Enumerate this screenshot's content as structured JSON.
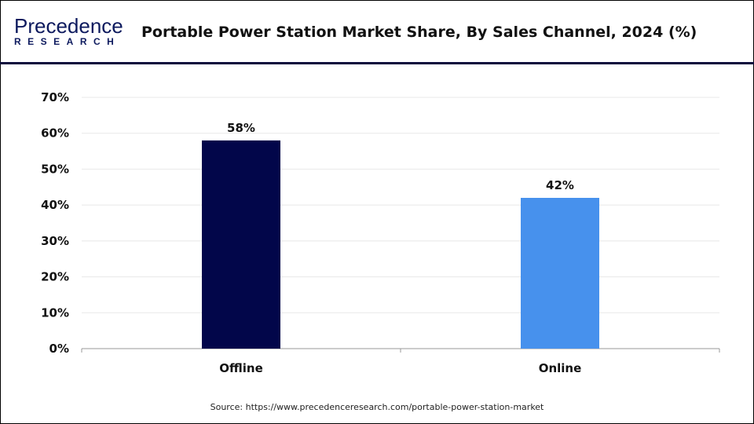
{
  "header": {
    "logo_top": "Precedence",
    "logo_bottom": "RESEARCH",
    "title": "Portable Power Station Market Share, By Sales Channel, 2024 (%)"
  },
  "source": "Source: https://www.precedenceresearch.com/portable-power-station-market",
  "chart_data": {
    "type": "bar",
    "title": "Portable Power Station Market Share, By Sales Channel, 2024 (%)",
    "categories": [
      "Offline",
      "Online"
    ],
    "values": [
      58,
      42
    ],
    "data_labels": [
      "58%",
      "42%"
    ],
    "colors": [
      "#02064a",
      "#4791ed"
    ],
    "ylim": [
      0,
      70
    ],
    "yticks": [
      "0%",
      "10%",
      "20%",
      "30%",
      "40%",
      "50%",
      "60%",
      "70%"
    ],
    "grid": true,
    "xlabel": "",
    "ylabel": ""
  }
}
